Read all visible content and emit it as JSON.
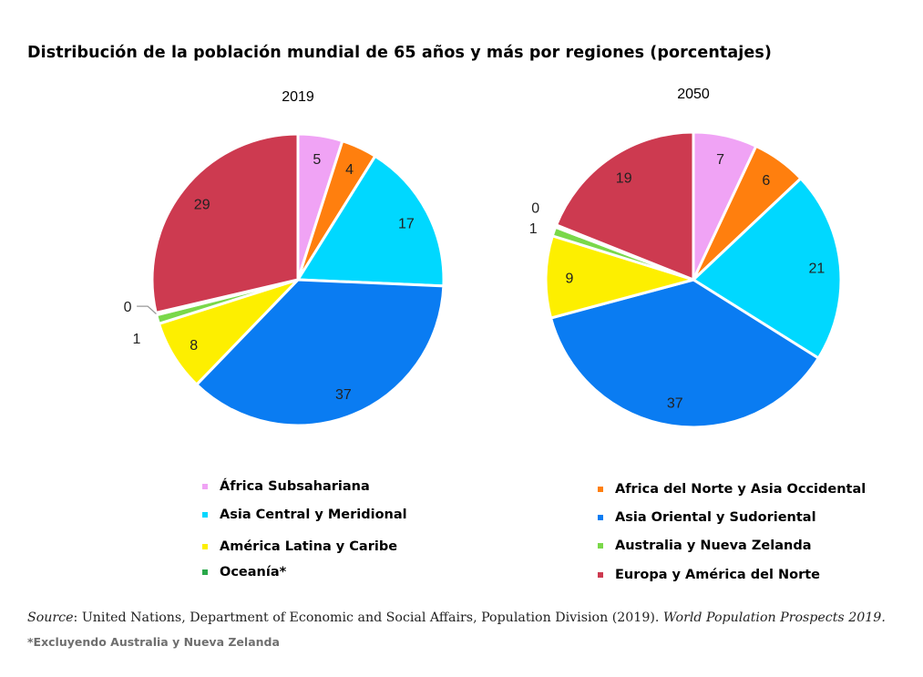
{
  "title": "Distribución de la población mundial de 65 años y más por regiones (porcentajes)",
  "chart_data": [
    {
      "type": "pie",
      "title": "2019",
      "categories": [
        "África Subsahariana",
        "Africa del Norte y Asia Occidental",
        "Asia Central y Meridional",
        "Asia Oriental y Sudoriental",
        "América Latina y Caribe",
        "Australia y Nueva Zelanda",
        "Oceanía*",
        "Europa y América del Norte"
      ],
      "values": [
        5,
        4,
        17,
        37,
        8,
        1,
        0,
        29
      ],
      "labels": [
        "5",
        "4",
        "17",
        "37",
        "8",
        "1",
        "0",
        "29"
      ]
    },
    {
      "type": "pie",
      "title": "2050",
      "categories": [
        "África Subsahariana",
        "Africa del Norte y Asia Occidental",
        "Asia Central y Meridional",
        "Asia Oriental y Sudoriental",
        "América Latina y Caribe",
        "Australia y Nueva Zelanda",
        "Oceanía*",
        "Europa y América del Norte"
      ],
      "values": [
        7,
        6,
        21,
        37,
        9,
        1,
        0,
        19
      ],
      "labels": [
        "7",
        "6",
        "21",
        "37",
        "9",
        "1",
        "0",
        "19"
      ]
    }
  ],
  "colors": [
    "#f0a3f5",
    "#ff7f0e",
    "#00d8ff",
    "#0a7cf2",
    "#fdef00",
    "#7ad84a",
    "#2aa84a",
    "#cd3a50"
  ],
  "legend": [
    {
      "label": "África Subsahariana",
      "color": "#f0a3f5"
    },
    {
      "label": "Africa del Norte y Asia Occidental",
      "color": "#ff7f0e"
    },
    {
      "label": "Asia Central y Meridional",
      "color": "#00d8ff"
    },
    {
      "label": "Asia Oriental y Sudoriental",
      "color": "#0a7cf2"
    },
    {
      "label": "América Latina y Caribe",
      "color": "#fdef00"
    },
    {
      "label": "Australia y Nueva Zelanda",
      "color": "#7ad84a"
    },
    {
      "label": "Oceanía*",
      "color": "#2aa84a"
    },
    {
      "label": "Europa y América del Norte",
      "color": "#cd3a50"
    }
  ],
  "source": {
    "prefix": "Source",
    "text": ": United Nations, Department of Economic and Social Affairs, Population Division (2019). ",
    "publication": "World Population Prospects 2019."
  },
  "footnote": "*Excluyendo Australia y Nueva Zelanda"
}
